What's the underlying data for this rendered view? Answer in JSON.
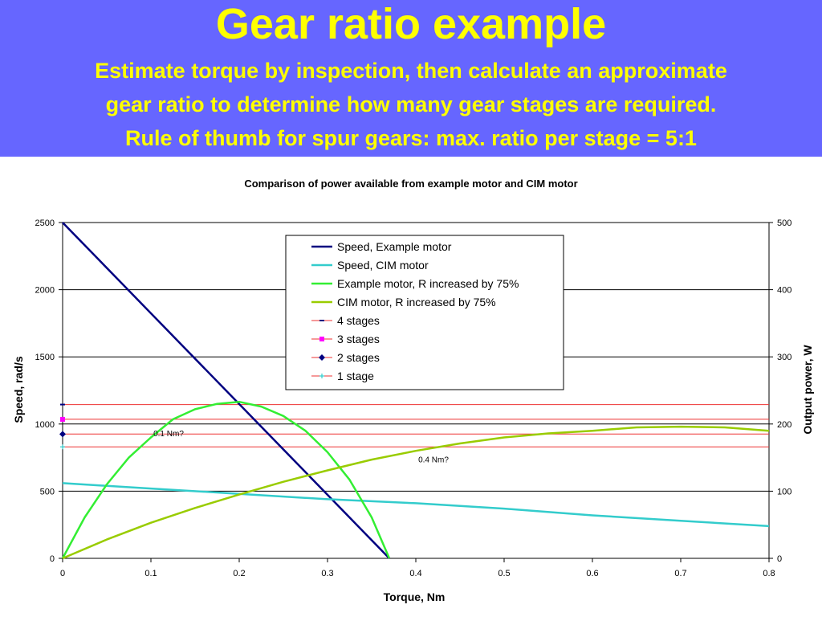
{
  "slide": {
    "title": "Gear ratio example",
    "subtitle_lines": [
      "Estimate torque by inspection, then calculate an approximate",
      "gear ratio to determine how many gear stages are required.",
      "Rule of thumb for spur gears: max. ratio per stage = 5:1"
    ]
  },
  "colors": {
    "header_bg": "#6666ff",
    "header_text": "#ffff00",
    "speed_example": "#000080",
    "speed_cim": "#33cccc",
    "power_example": "#33ee33",
    "power_cim": "#99cc00",
    "stage_line": "#ee3333"
  },
  "chart_data": {
    "type": "line",
    "title": "Comparison of power available from example motor and CIM motor",
    "xlabel": "Torque, Nm",
    "ylabel_left": "Speed, rad/s",
    "ylabel_right": "Output power, W",
    "xlim": [
      0,
      0.8
    ],
    "ylim_left": [
      0,
      2500
    ],
    "ylim_right": [
      0,
      500
    ],
    "x_ticks": [
      "0",
      "0.1",
      "0.2",
      "0.3",
      "0.4",
      "0.5",
      "0.6",
      "0.7",
      "0.8"
    ],
    "y_ticks_left": [
      "0",
      "500",
      "1000",
      "1500",
      "2000",
      "2500"
    ],
    "y_ticks_right": [
      "0",
      "100",
      "200",
      "300",
      "400",
      "500"
    ],
    "grid": "horizontal",
    "legend_position": "top-center",
    "series": [
      {
        "name": "Speed, Example motor",
        "axis": "left",
        "color": "#000080",
        "width": 2.5,
        "x": [
          0,
          0.37
        ],
        "y": [
          2500,
          0
        ]
      },
      {
        "name": "Speed, CIM motor",
        "axis": "left",
        "color": "#33cccc",
        "width": 2.5,
        "x": [
          0,
          0.1,
          0.2,
          0.3,
          0.4,
          0.5,
          0.6,
          0.7,
          0.8
        ],
        "y": [
          560,
          520,
          480,
          440,
          410,
          370,
          320,
          280,
          240
        ]
      },
      {
        "name": "Example motor, R increased by 75%",
        "axis": "right",
        "color": "#33ee33",
        "width": 2.5,
        "x": [
          0,
          0.025,
          0.05,
          0.075,
          0.1,
          0.125,
          0.15,
          0.175,
          0.2,
          0.225,
          0.25,
          0.275,
          0.3,
          0.325,
          0.35,
          0.37
        ],
        "y": [
          0,
          61,
          110,
          150,
          180,
          207,
          222,
          230,
          233,
          226,
          212,
          190,
          158,
          117,
          61,
          0
        ]
      },
      {
        "name": "CIM motor, R increased by 75%",
        "axis": "right",
        "color": "#99cc00",
        "width": 2.5,
        "x": [
          0,
          0.05,
          0.1,
          0.15,
          0.2,
          0.25,
          0.3,
          0.35,
          0.4,
          0.45,
          0.5,
          0.55,
          0.6,
          0.65,
          0.7,
          0.75,
          0.8
        ],
        "y": [
          0,
          28,
          53,
          75,
          95,
          114,
          131,
          147,
          160,
          171,
          180,
          186,
          190,
          195,
          196,
          195,
          190
        ]
      },
      {
        "name": "4 stages",
        "axis": "left",
        "color": "#ee3333",
        "marker": "dash",
        "marker_color": "#000080",
        "x": [
          0,
          0.8
        ],
        "y": [
          1145,
          1145
        ]
      },
      {
        "name": "3 stages",
        "axis": "left",
        "color": "#ee3333",
        "marker": "square",
        "marker_color": "#ff00ff",
        "x": [
          0,
          0.8
        ],
        "y": [
          1035,
          1035
        ]
      },
      {
        "name": "2 stages",
        "axis": "left",
        "color": "#ee3333",
        "marker": "diamond",
        "marker_color": "#000080",
        "x": [
          0,
          0.8
        ],
        "y": [
          925,
          925
        ]
      },
      {
        "name": "1 stage",
        "axis": "left",
        "color": "#ee3333",
        "marker": "plus",
        "marker_color": "#33cccc",
        "x": [
          0,
          0.8
        ],
        "y": [
          830,
          830
        ]
      }
    ],
    "annotations": [
      {
        "text": "0.1 Nm?",
        "x": 0.12,
        "y": 910
      },
      {
        "text": "0.4 Nm?",
        "x": 0.42,
        "y": 715
      }
    ]
  }
}
